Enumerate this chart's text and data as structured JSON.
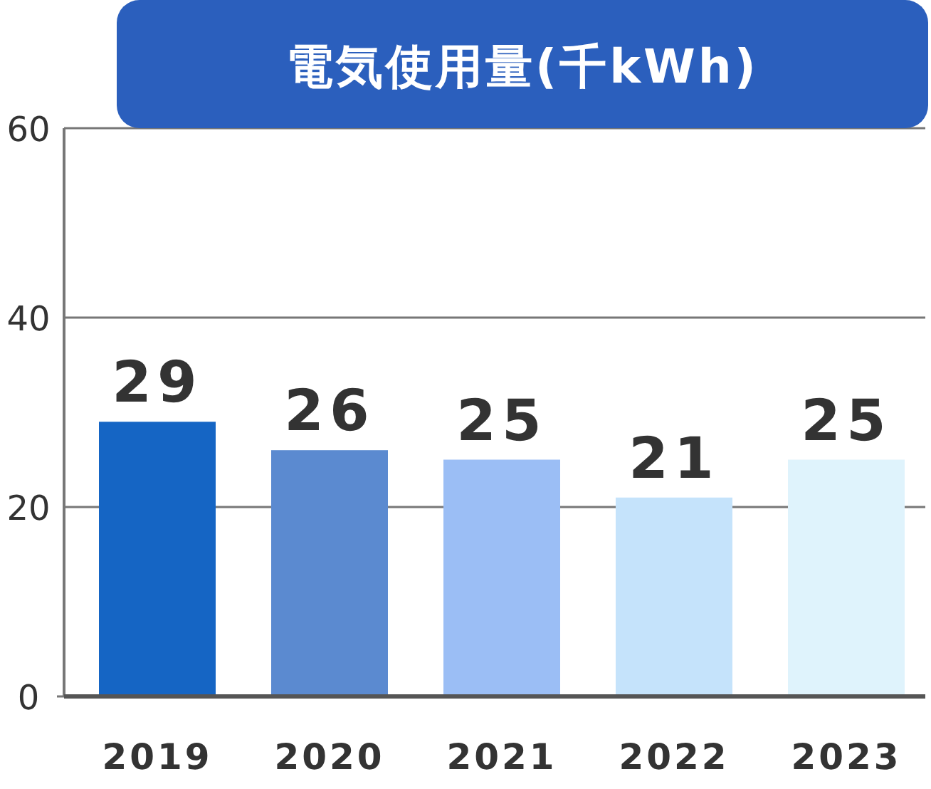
{
  "chart_data": {
    "type": "bar",
    "title": "電気使用量(千kWh)",
    "categories": [
      "2019",
      "2020",
      "2021",
      "2022",
      "2023"
    ],
    "values": [
      29,
      26,
      25,
      21,
      25
    ],
    "colors": [
      "#1565c4",
      "#5b8ad0",
      "#9bbef5",
      "#c5e3fb",
      "#dff3fc"
    ],
    "data_labels": true,
    "ylim": [
      0,
      60
    ],
    "yticks": [
      0,
      20,
      40,
      60
    ],
    "grid": "y"
  }
}
